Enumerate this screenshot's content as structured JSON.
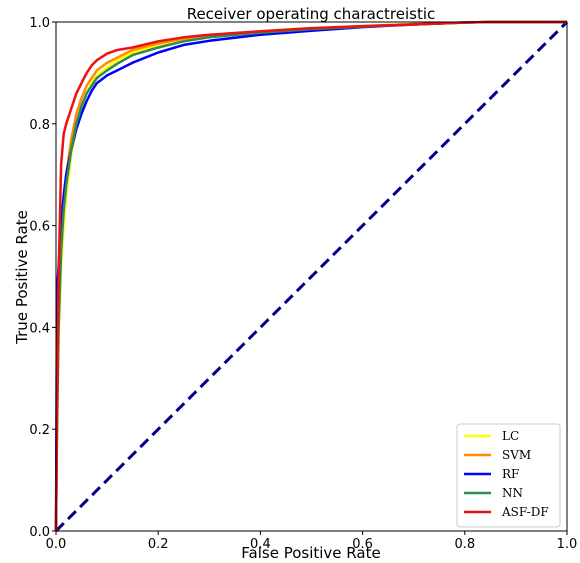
{
  "chart_data": {
    "type": "line",
    "title": "Receiver operating charactreistic",
    "xlabel": "False Positive Rate",
    "ylabel": "True Positive Rate",
    "xlim": [
      0.0,
      1.0
    ],
    "ylim": [
      0.0,
      1.0
    ],
    "xticks": [
      "0.0",
      "0.2",
      "0.4",
      "0.6",
      "0.8",
      "1.0"
    ],
    "yticks": [
      "0.0",
      "0.2",
      "0.4",
      "0.6",
      "0.8",
      "1.0"
    ],
    "grid": false,
    "legend_position": "lower-right",
    "series": [
      {
        "name": "LC",
        "color": "#ffff00",
        "x": [
          0,
          0.002,
          0.005,
          0.01,
          0.015,
          0.02,
          0.03,
          0.04,
          0.05,
          0.06,
          0.07,
          0.08,
          0.1,
          0.12,
          0.15,
          0.2,
          0.25,
          0.3,
          0.4,
          0.5,
          0.6,
          0.7,
          0.8,
          0.85,
          1.0
        ],
        "y": [
          0,
          0.2,
          0.38,
          0.52,
          0.6,
          0.66,
          0.74,
          0.79,
          0.83,
          0.86,
          0.88,
          0.895,
          0.91,
          0.925,
          0.94,
          0.955,
          0.965,
          0.972,
          0.98,
          0.987,
          0.992,
          0.996,
          0.999,
          1.0,
          1.0
        ]
      },
      {
        "name": "SVM",
        "color": "#ff8c00",
        "x": [
          0,
          0.002,
          0.005,
          0.01,
          0.015,
          0.02,
          0.03,
          0.04,
          0.05,
          0.06,
          0.07,
          0.08,
          0.1,
          0.12,
          0.15,
          0.2,
          0.25,
          0.3,
          0.4,
          0.5,
          0.6,
          0.7,
          0.8,
          0.85,
          1.0
        ],
        "y": [
          0,
          0.25,
          0.42,
          0.56,
          0.64,
          0.7,
          0.77,
          0.82,
          0.85,
          0.875,
          0.89,
          0.905,
          0.92,
          0.93,
          0.945,
          0.958,
          0.967,
          0.973,
          0.981,
          0.987,
          0.992,
          0.996,
          0.999,
          1.0,
          1.0
        ]
      },
      {
        "name": "RF",
        "color": "#0000ff",
        "x": [
          0,
          0.002,
          0.005,
          0.01,
          0.015,
          0.02,
          0.03,
          0.04,
          0.05,
          0.06,
          0.07,
          0.08,
          0.1,
          0.12,
          0.15,
          0.2,
          0.25,
          0.3,
          0.4,
          0.5,
          0.6,
          0.7,
          0.8,
          0.85,
          1.0
        ],
        "y": [
          0,
          0.47,
          0.52,
          0.6,
          0.66,
          0.7,
          0.75,
          0.79,
          0.82,
          0.845,
          0.865,
          0.88,
          0.895,
          0.905,
          0.92,
          0.94,
          0.955,
          0.963,
          0.975,
          0.983,
          0.99,
          0.995,
          0.999,
          1.0,
          1.0
        ]
      },
      {
        "name": "NN",
        "color": "#2e8b57",
        "x": [
          0,
          0.002,
          0.005,
          0.01,
          0.015,
          0.02,
          0.03,
          0.04,
          0.05,
          0.06,
          0.07,
          0.08,
          0.1,
          0.12,
          0.15,
          0.2,
          0.25,
          0.3,
          0.4,
          0.5,
          0.6,
          0.7,
          0.8,
          0.85,
          1.0
        ],
        "y": [
          0,
          0.2,
          0.4,
          0.55,
          0.63,
          0.68,
          0.75,
          0.8,
          0.835,
          0.86,
          0.875,
          0.89,
          0.905,
          0.918,
          0.935,
          0.95,
          0.962,
          0.97,
          0.979,
          0.986,
          0.991,
          0.995,
          0.999,
          1.0,
          1.0
        ]
      },
      {
        "name": "ASF-DF",
        "color": "#ee1111",
        "x": [
          0,
          0.002,
          0.005,
          0.01,
          0.015,
          0.02,
          0.03,
          0.04,
          0.05,
          0.06,
          0.07,
          0.08,
          0.1,
          0.12,
          0.15,
          0.2,
          0.25,
          0.3,
          0.4,
          0.5,
          0.6,
          0.7,
          0.8,
          0.85,
          1.0
        ],
        "y": [
          0,
          0.22,
          0.5,
          0.72,
          0.78,
          0.8,
          0.83,
          0.86,
          0.88,
          0.9,
          0.915,
          0.925,
          0.938,
          0.945,
          0.95,
          0.962,
          0.97,
          0.975,
          0.982,
          0.988,
          0.992,
          0.995,
          0.999,
          1.0,
          1.0
        ]
      }
    ],
    "reference_line": {
      "x": [
        0,
        1
      ],
      "y": [
        0,
        1
      ],
      "color": "#00008b",
      "style": "dashed"
    }
  }
}
